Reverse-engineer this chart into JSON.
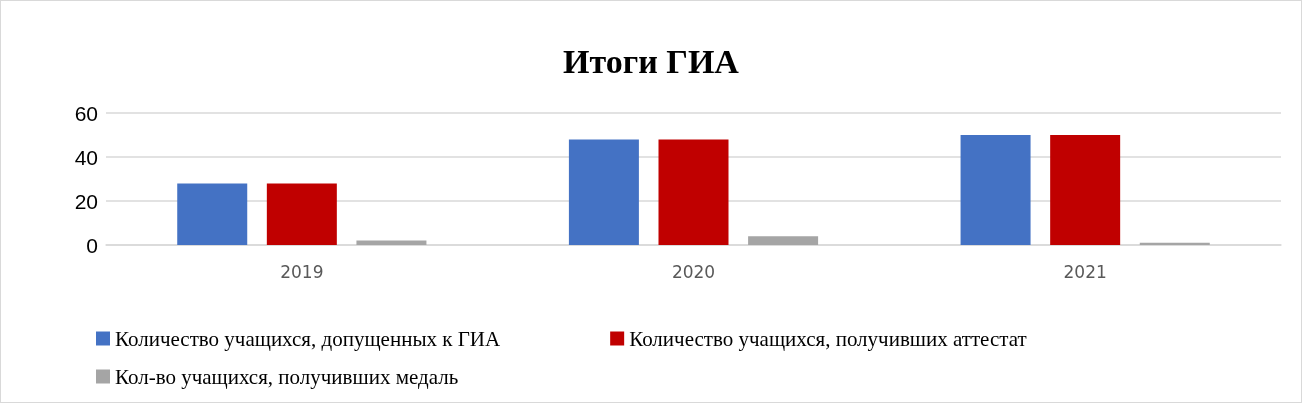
{
  "chart_data": {
    "type": "bar",
    "title": "Итоги ГИА",
    "categories": [
      "2019",
      "2020",
      "2021"
    ],
    "series": [
      {
        "name": "Количество учащихся, допущенных к ГИА",
        "color": "#4472c4",
        "values": [
          28,
          48,
          50
        ]
      },
      {
        "name": "Количество учащихся, получивших аттестат",
        "color": "#c00000",
        "values": [
          28,
          48,
          50
        ]
      },
      {
        "name": "Кол-во учащихся, получивших медаль",
        "color": "#a5a5a5",
        "values": [
          2,
          4,
          1
        ]
      }
    ],
    "ylim": [
      0,
      60
    ],
    "yticks": [
      0,
      20,
      40,
      60
    ],
    "grid": "y",
    "legend": "bottom"
  }
}
